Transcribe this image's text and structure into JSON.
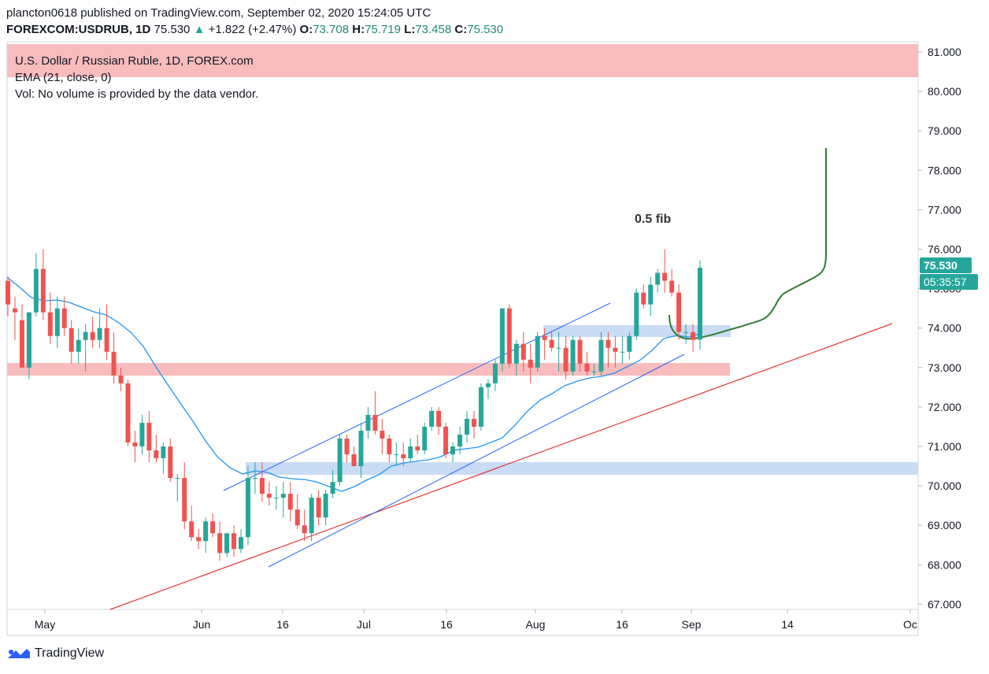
{
  "header": {
    "line1": "plancton0618 published on TradingView.com, September 02, 2020 15:24:05 UTC",
    "symbol": "FOREXCOM:USDRUB, 1D",
    "price": "75.530",
    "change_arrow": "▲",
    "change": "+1.822 (+2.47%)",
    "o_label": "O:",
    "o_value": "73.708",
    "h_label": "H:",
    "h_value": "75.719",
    "l_label": "L:",
    "l_value": "73.458",
    "c_label": "C:",
    "c_value": "75.530"
  },
  "legend": {
    "title": "U.S. Dollar / Russian Ruble, 1D, FOREX.com",
    "ema": "EMA (21, close, 0)",
    "vol": "Vol: No volume is provided by the data vendor."
  },
  "annotations": {
    "fib_label": "0.5 fib"
  },
  "price_labels": {
    "last_price": "75.530",
    "countdown": "05:35:57"
  },
  "footer": {
    "brand": "TradingView"
  },
  "colors": {
    "bull": "#26a69a",
    "bear": "#ef5350",
    "up_text": "#26a69a",
    "ema": "#2196f3",
    "channel": "#2962ff",
    "trend": "#e53935",
    "projection": "#2e7d32",
    "red_zone": "#f8bcbc",
    "blue_zone": "#c9dbf5"
  },
  "chart_data": {
    "type": "candlestick",
    "y_ticks": [
      "67.000",
      "68.000",
      "69.000",
      "70.000",
      "71.000",
      "72.000",
      "73.000",
      "74.000",
      "75.000",
      "76.000",
      "77.000",
      "78.000",
      "79.000",
      "80.000",
      "81.000"
    ],
    "x_ticks": [
      "May",
      "Jun",
      "16",
      "Jul",
      "16",
      "Aug",
      "16",
      "Sep",
      "14",
      "Oc"
    ],
    "ylim": [
      66.8,
      81.2
    ],
    "candles": [
      {
        "o": 75.2,
        "h": 75.3,
        "l": 74.3,
        "c": 74.6
      },
      {
        "o": 74.5,
        "h": 74.8,
        "l": 73.7,
        "c": 74.4
      },
      {
        "o": 74.2,
        "h": 74.6,
        "l": 73.0,
        "c": 73.0
      },
      {
        "o": 73.0,
        "h": 74.4,
        "l": 72.7,
        "c": 74.4
      },
      {
        "o": 74.4,
        "h": 75.9,
        "l": 74.3,
        "c": 75.5
      },
      {
        "o": 75.5,
        "h": 76.0,
        "l": 74.2,
        "c": 74.4
      },
      {
        "o": 74.4,
        "h": 74.9,
        "l": 73.6,
        "c": 73.8
      },
      {
        "o": 73.8,
        "h": 74.8,
        "l": 73.5,
        "c": 74.5
      },
      {
        "o": 74.5,
        "h": 74.8,
        "l": 73.8,
        "c": 74.0
      },
      {
        "o": 74.0,
        "h": 74.2,
        "l": 73.1,
        "c": 73.4
      },
      {
        "o": 73.4,
        "h": 74.0,
        "l": 73.1,
        "c": 73.7
      },
      {
        "o": 73.7,
        "h": 74.1,
        "l": 72.9,
        "c": 73.9
      },
      {
        "o": 73.9,
        "h": 74.3,
        "l": 73.5,
        "c": 73.7
      },
      {
        "o": 73.7,
        "h": 74.5,
        "l": 73.5,
        "c": 74.0
      },
      {
        "o": 74.0,
        "h": 74.6,
        "l": 73.2,
        "c": 73.4
      },
      {
        "o": 73.4,
        "h": 73.9,
        "l": 72.6,
        "c": 72.8
      },
      {
        "o": 72.8,
        "h": 73.0,
        "l": 72.4,
        "c": 72.6
      },
      {
        "o": 72.6,
        "h": 72.7,
        "l": 71.0,
        "c": 71.1
      },
      {
        "o": 71.1,
        "h": 71.4,
        "l": 70.6,
        "c": 71.0
      },
      {
        "o": 71.0,
        "h": 71.8,
        "l": 70.8,
        "c": 71.6
      },
      {
        "o": 71.6,
        "h": 71.9,
        "l": 70.6,
        "c": 70.9
      },
      {
        "o": 70.9,
        "h": 71.3,
        "l": 70.6,
        "c": 70.7
      },
      {
        "o": 70.7,
        "h": 71.1,
        "l": 70.3,
        "c": 71.0
      },
      {
        "o": 71.0,
        "h": 71.2,
        "l": 70.1,
        "c": 70.2
      },
      {
        "o": 70.2,
        "h": 70.3,
        "l": 69.6,
        "c": 70.2
      },
      {
        "o": 70.2,
        "h": 70.6,
        "l": 68.9,
        "c": 69.1
      },
      {
        "o": 69.1,
        "h": 69.5,
        "l": 68.6,
        "c": 68.7
      },
      {
        "o": 68.7,
        "h": 68.9,
        "l": 68.4,
        "c": 68.6
      },
      {
        "o": 68.6,
        "h": 69.2,
        "l": 68.3,
        "c": 69.1
      },
      {
        "o": 69.1,
        "h": 69.3,
        "l": 68.7,
        "c": 68.8
      },
      {
        "o": 68.8,
        "h": 69.1,
        "l": 68.1,
        "c": 68.3
      },
      {
        "o": 68.3,
        "h": 68.8,
        "l": 68.2,
        "c": 68.8
      },
      {
        "o": 68.8,
        "h": 69.0,
        "l": 68.2,
        "c": 68.4
      },
      {
        "o": 68.4,
        "h": 68.9,
        "l": 68.3,
        "c": 68.7
      },
      {
        "o": 68.7,
        "h": 70.5,
        "l": 68.5,
        "c": 70.2
      },
      {
        "o": 70.2,
        "h": 70.6,
        "l": 69.8,
        "c": 70.2
      },
      {
        "o": 70.2,
        "h": 70.6,
        "l": 69.6,
        "c": 69.8
      },
      {
        "o": 69.8,
        "h": 70.1,
        "l": 69.5,
        "c": 69.7
      },
      {
        "o": 69.7,
        "h": 70.0,
        "l": 69.4,
        "c": 69.7
      },
      {
        "o": 69.7,
        "h": 70.1,
        "l": 69.2,
        "c": 69.8
      },
      {
        "o": 69.8,
        "h": 70.1,
        "l": 69.1,
        "c": 69.4
      },
      {
        "o": 69.4,
        "h": 69.8,
        "l": 68.9,
        "c": 69.0
      },
      {
        "o": 69.0,
        "h": 69.4,
        "l": 68.6,
        "c": 68.8
      },
      {
        "o": 68.8,
        "h": 69.8,
        "l": 68.6,
        "c": 69.7
      },
      {
        "o": 69.7,
        "h": 69.9,
        "l": 69.0,
        "c": 69.2
      },
      {
        "o": 69.2,
        "h": 69.9,
        "l": 69.0,
        "c": 69.8
      },
      {
        "o": 69.8,
        "h": 70.4,
        "l": 69.7,
        "c": 70.1
      },
      {
        "o": 70.1,
        "h": 71.3,
        "l": 70.0,
        "c": 71.2
      },
      {
        "o": 71.2,
        "h": 71.3,
        "l": 70.6,
        "c": 70.8
      },
      {
        "o": 70.8,
        "h": 71.0,
        "l": 70.5,
        "c": 70.5
      },
      {
        "o": 70.5,
        "h": 71.6,
        "l": 70.2,
        "c": 71.4
      },
      {
        "o": 71.4,
        "h": 72.0,
        "l": 71.2,
        "c": 71.8
      },
      {
        "o": 71.8,
        "h": 72.4,
        "l": 71.3,
        "c": 71.4
      },
      {
        "o": 71.4,
        "h": 71.7,
        "l": 70.8,
        "c": 71.2
      },
      {
        "o": 71.2,
        "h": 71.3,
        "l": 70.6,
        "c": 70.8
      },
      {
        "o": 70.8,
        "h": 71.1,
        "l": 70.5,
        "c": 70.8
      },
      {
        "o": 70.8,
        "h": 71.1,
        "l": 70.5,
        "c": 70.7
      },
      {
        "o": 70.7,
        "h": 71.2,
        "l": 70.6,
        "c": 71.0
      },
      {
        "o": 71.0,
        "h": 71.3,
        "l": 70.8,
        "c": 70.9
      },
      {
        "o": 70.9,
        "h": 71.6,
        "l": 70.8,
        "c": 71.5
      },
      {
        "o": 71.5,
        "h": 72.0,
        "l": 71.4,
        "c": 71.9
      },
      {
        "o": 71.9,
        "h": 72.0,
        "l": 71.3,
        "c": 71.5
      },
      {
        "o": 71.5,
        "h": 71.6,
        "l": 70.7,
        "c": 70.8
      },
      {
        "o": 70.8,
        "h": 71.1,
        "l": 70.6,
        "c": 71.0
      },
      {
        "o": 71.0,
        "h": 71.5,
        "l": 70.8,
        "c": 71.3
      },
      {
        "o": 71.3,
        "h": 71.9,
        "l": 71.1,
        "c": 71.7
      },
      {
        "o": 71.7,
        "h": 71.9,
        "l": 71.2,
        "c": 71.5
      },
      {
        "o": 71.5,
        "h": 72.6,
        "l": 71.4,
        "c": 72.5
      },
      {
        "o": 72.5,
        "h": 72.7,
        "l": 72.2,
        "c": 72.6
      },
      {
        "o": 72.6,
        "h": 73.2,
        "l": 72.4,
        "c": 73.1
      },
      {
        "o": 73.1,
        "h": 74.5,
        "l": 72.9,
        "c": 74.5
      },
      {
        "o": 74.5,
        "h": 74.6,
        "l": 73.0,
        "c": 73.1
      },
      {
        "o": 73.1,
        "h": 73.7,
        "l": 72.8,
        "c": 73.6
      },
      {
        "o": 73.6,
        "h": 73.9,
        "l": 72.9,
        "c": 73.2
      },
      {
        "o": 73.2,
        "h": 73.6,
        "l": 72.6,
        "c": 73.0
      },
      {
        "o": 73.0,
        "h": 73.9,
        "l": 72.9,
        "c": 73.8
      },
      {
        "o": 73.8,
        "h": 74.0,
        "l": 73.2,
        "c": 73.7
      },
      {
        "o": 73.7,
        "h": 73.9,
        "l": 73.4,
        "c": 73.5
      },
      {
        "o": 73.5,
        "h": 73.9,
        "l": 72.9,
        "c": 73.5
      },
      {
        "o": 73.5,
        "h": 73.8,
        "l": 72.7,
        "c": 72.9
      },
      {
        "o": 72.9,
        "h": 73.8,
        "l": 72.8,
        "c": 73.7
      },
      {
        "o": 73.7,
        "h": 73.8,
        "l": 72.9,
        "c": 73.1
      },
      {
        "o": 73.1,
        "h": 73.4,
        "l": 72.8,
        "c": 72.9
      },
      {
        "o": 72.9,
        "h": 73.1,
        "l": 72.8,
        "c": 72.9
      },
      {
        "o": 72.9,
        "h": 73.9,
        "l": 72.8,
        "c": 73.7
      },
      {
        "o": 73.7,
        "h": 73.9,
        "l": 73.0,
        "c": 73.5
      },
      {
        "o": 73.5,
        "h": 73.8,
        "l": 73.0,
        "c": 73.4
      },
      {
        "o": 73.4,
        "h": 73.8,
        "l": 73.1,
        "c": 73.4
      },
      {
        "o": 73.4,
        "h": 73.9,
        "l": 73.2,
        "c": 73.8
      },
      {
        "o": 73.8,
        "h": 75.0,
        "l": 73.7,
        "c": 74.9
      },
      {
        "o": 74.9,
        "h": 75.1,
        "l": 74.5,
        "c": 74.6
      },
      {
        "o": 74.6,
        "h": 75.3,
        "l": 74.3,
        "c": 75.1
      },
      {
        "o": 75.1,
        "h": 75.5,
        "l": 74.9,
        "c": 75.4
      },
      {
        "o": 75.4,
        "h": 76.0,
        "l": 74.9,
        "c": 75.2
      },
      {
        "o": 75.2,
        "h": 75.5,
        "l": 74.8,
        "c": 74.9
      },
      {
        "o": 74.9,
        "h": 75.1,
        "l": 73.7,
        "c": 73.9
      },
      {
        "o": 73.9,
        "h": 74.1,
        "l": 73.6,
        "c": 73.9
      },
      {
        "o": 73.9,
        "h": 74.1,
        "l": 73.4,
        "c": 73.7
      },
      {
        "o": 73.708,
        "h": 75.719,
        "l": 73.458,
        "c": 75.53
      }
    ]
  }
}
